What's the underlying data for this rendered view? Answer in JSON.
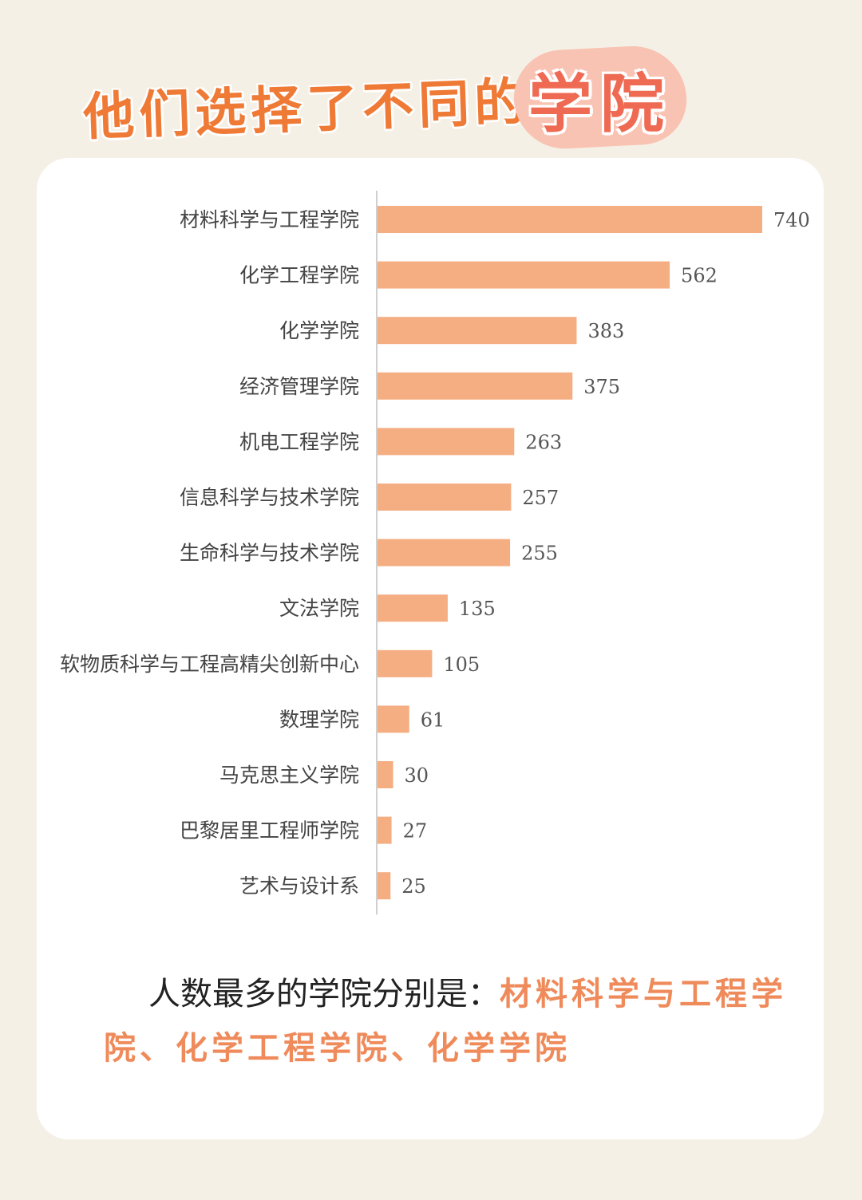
{
  "header": {
    "title_main": "他们选择了不同的",
    "title_highlight": "学院"
  },
  "colors": {
    "background": "#f5f0e6",
    "bar": "#f5ad82",
    "title": "#ef7a36",
    "highlight": "#ef6a52",
    "summary_highlight": "#ef8a5a"
  },
  "chart_data": {
    "type": "bar",
    "orientation": "horizontal",
    "categories": [
      "材料科学与工程学院",
      "化学工程学院",
      "化学学院",
      "经济管理学院",
      "机电工程学院",
      "信息科学与技术学院",
      "生命科学与技术学院",
      "文法学院",
      "软物质科学与工程高精尖创新中心",
      "数理学院",
      "马克思主义学院",
      "巴黎居里工程师学院",
      "艺术与设计系"
    ],
    "values": [
      740,
      562,
      383,
      375,
      263,
      257,
      255,
      135,
      105,
      61,
      30,
      27,
      25
    ],
    "xlim": [
      0,
      740
    ],
    "grid": false,
    "data_labels": true
  },
  "summary": {
    "intro": "人数最多的学院分别是：",
    "highlight": "材料科学与工程学院、化学工程学院、化学学院"
  }
}
